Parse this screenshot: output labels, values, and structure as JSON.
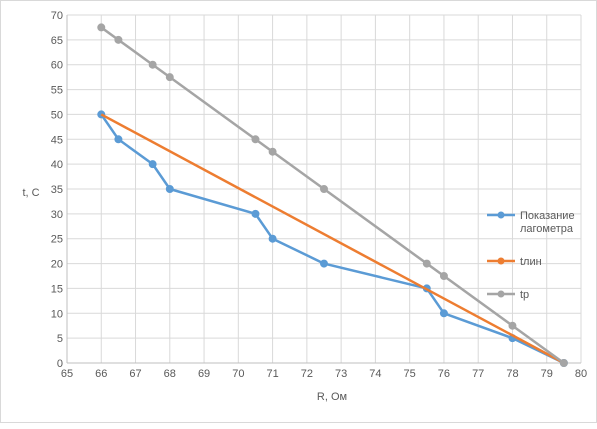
{
  "chart_data": {
    "type": "line",
    "title": "",
    "xlabel": "R, Ом",
    "ylabel": "t, C",
    "xlim": [
      65,
      80
    ],
    "ylim": [
      0,
      70
    ],
    "xticks": [
      65,
      66,
      67,
      68,
      69,
      70,
      71,
      72,
      73,
      74,
      75,
      76,
      77,
      78,
      79,
      80
    ],
    "yticks": [
      0,
      5,
      10,
      15,
      20,
      25,
      30,
      35,
      40,
      45,
      50,
      55,
      60,
      65,
      70
    ],
    "grid": true,
    "legend_position": "right",
    "series": [
      {
        "name": "Показание лагометра",
        "color": "#5b9bd5",
        "marker": "circle",
        "points": [
          [
            66,
            50
          ],
          [
            66.5,
            45
          ],
          [
            67.5,
            40
          ],
          [
            68,
            35
          ],
          [
            70.5,
            30
          ],
          [
            71,
            25
          ],
          [
            72.5,
            20
          ],
          [
            75.5,
            15
          ],
          [
            76,
            10
          ],
          [
            78,
            5
          ],
          [
            79.5,
            0
          ]
        ]
      },
      {
        "name": "tлин",
        "color": "#ed7d31",
        "marker": "none",
        "points": [
          [
            66,
            50
          ],
          [
            79.5,
            0
          ]
        ]
      },
      {
        "name": "tр",
        "color": "#a5a5a5",
        "marker": "circle",
        "points": [
          [
            66,
            67.5
          ],
          [
            66.5,
            65
          ],
          [
            67.5,
            60
          ],
          [
            68,
            57.5
          ],
          [
            70.5,
            45
          ],
          [
            71,
            42.5
          ],
          [
            72.5,
            35
          ],
          [
            75.5,
            20
          ],
          [
            76,
            17.5
          ],
          [
            78,
            7.5
          ],
          [
            79.5,
            0
          ]
        ]
      }
    ]
  }
}
